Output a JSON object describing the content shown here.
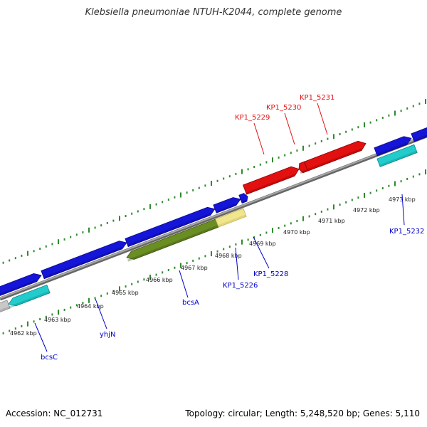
{
  "title": "Klebsiella pneumoniae NTUH-K2044, complete genome",
  "footer": {
    "accession": "Accession: NC_012731",
    "topology": "Topology: circular; Length: 5,248,520 bp; Genes: 5,110"
  },
  "colors": {
    "backbone": "#808080",
    "tick": "#2e8b2e",
    "gene_blue": "#1515d9",
    "gene_red": "#e31010",
    "gene_cyan": "#22cccc",
    "gene_olive": "#6b8e23",
    "gene_pale": "#f0e68c",
    "gene_gray": "#c8c8c8",
    "label_blue": "#0000cc",
    "label_red": "#e31010"
  },
  "kbp_labels": [
    "4962 kbp",
    "4963 kbp",
    "4964 kbp",
    "4965 kbp",
    "4966 kbp",
    "4967 kbp",
    "4968 kbp",
    "4969 kbp",
    "4970 kbp",
    "4971 kbp",
    "4972 kbp",
    "4973 kbp"
  ],
  "gene_labels": [
    {
      "text": "bcsC",
      "color": "blue"
    },
    {
      "text": "yhjN",
      "color": "blue"
    },
    {
      "text": "bcsA",
      "color": "blue"
    },
    {
      "text": "KP1_5226",
      "color": "blue"
    },
    {
      "text": "KP1_5228",
      "color": "blue"
    },
    {
      "text": "KP1_5229",
      "color": "red"
    },
    {
      "text": "KP1_5230",
      "color": "red"
    },
    {
      "text": "KP1_5231",
      "color": "red"
    },
    {
      "text": "KP1_5232",
      "color": "blue"
    }
  ]
}
